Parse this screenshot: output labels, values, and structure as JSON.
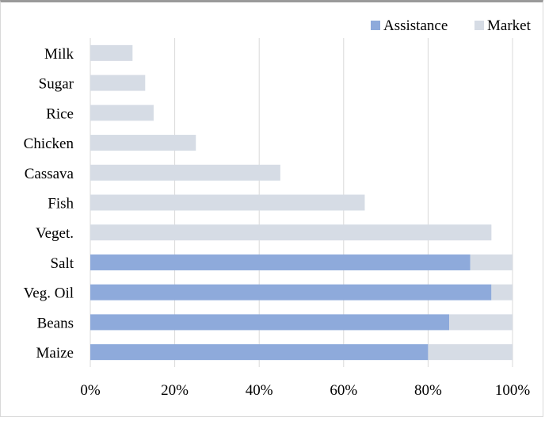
{
  "chart_data": {
    "type": "bar",
    "orientation": "horizontal",
    "stacked": true,
    "percent_stacked": true,
    "categories": [
      "Maize",
      "Beans",
      "Veg. Oil",
      "Salt",
      "Veget.",
      "Fish",
      "Cassava",
      "Chicken",
      "Rice",
      "Sugar",
      "Milk"
    ],
    "series": [
      {
        "name": "Assistance",
        "color": "#8eaadb",
        "values": [
          80,
          85,
          95,
          90,
          0,
          0,
          0,
          0,
          0,
          0,
          0
        ]
      },
      {
        "name": "Market",
        "color": "#d6dce5",
        "values": [
          20,
          15,
          5,
          10,
          95,
          65,
          45,
          25,
          15,
          13,
          10
        ]
      }
    ],
    "xlim": [
      0,
      100
    ],
    "x_ticks": [
      "0%",
      "20%",
      "40%",
      "60%",
      "80%",
      "100%"
    ],
    "x_tick_values": [
      0,
      20,
      40,
      60,
      80,
      100
    ],
    "grid": "vertical",
    "legend_position": "top-right",
    "gridline_color": "#d9d9d9"
  }
}
